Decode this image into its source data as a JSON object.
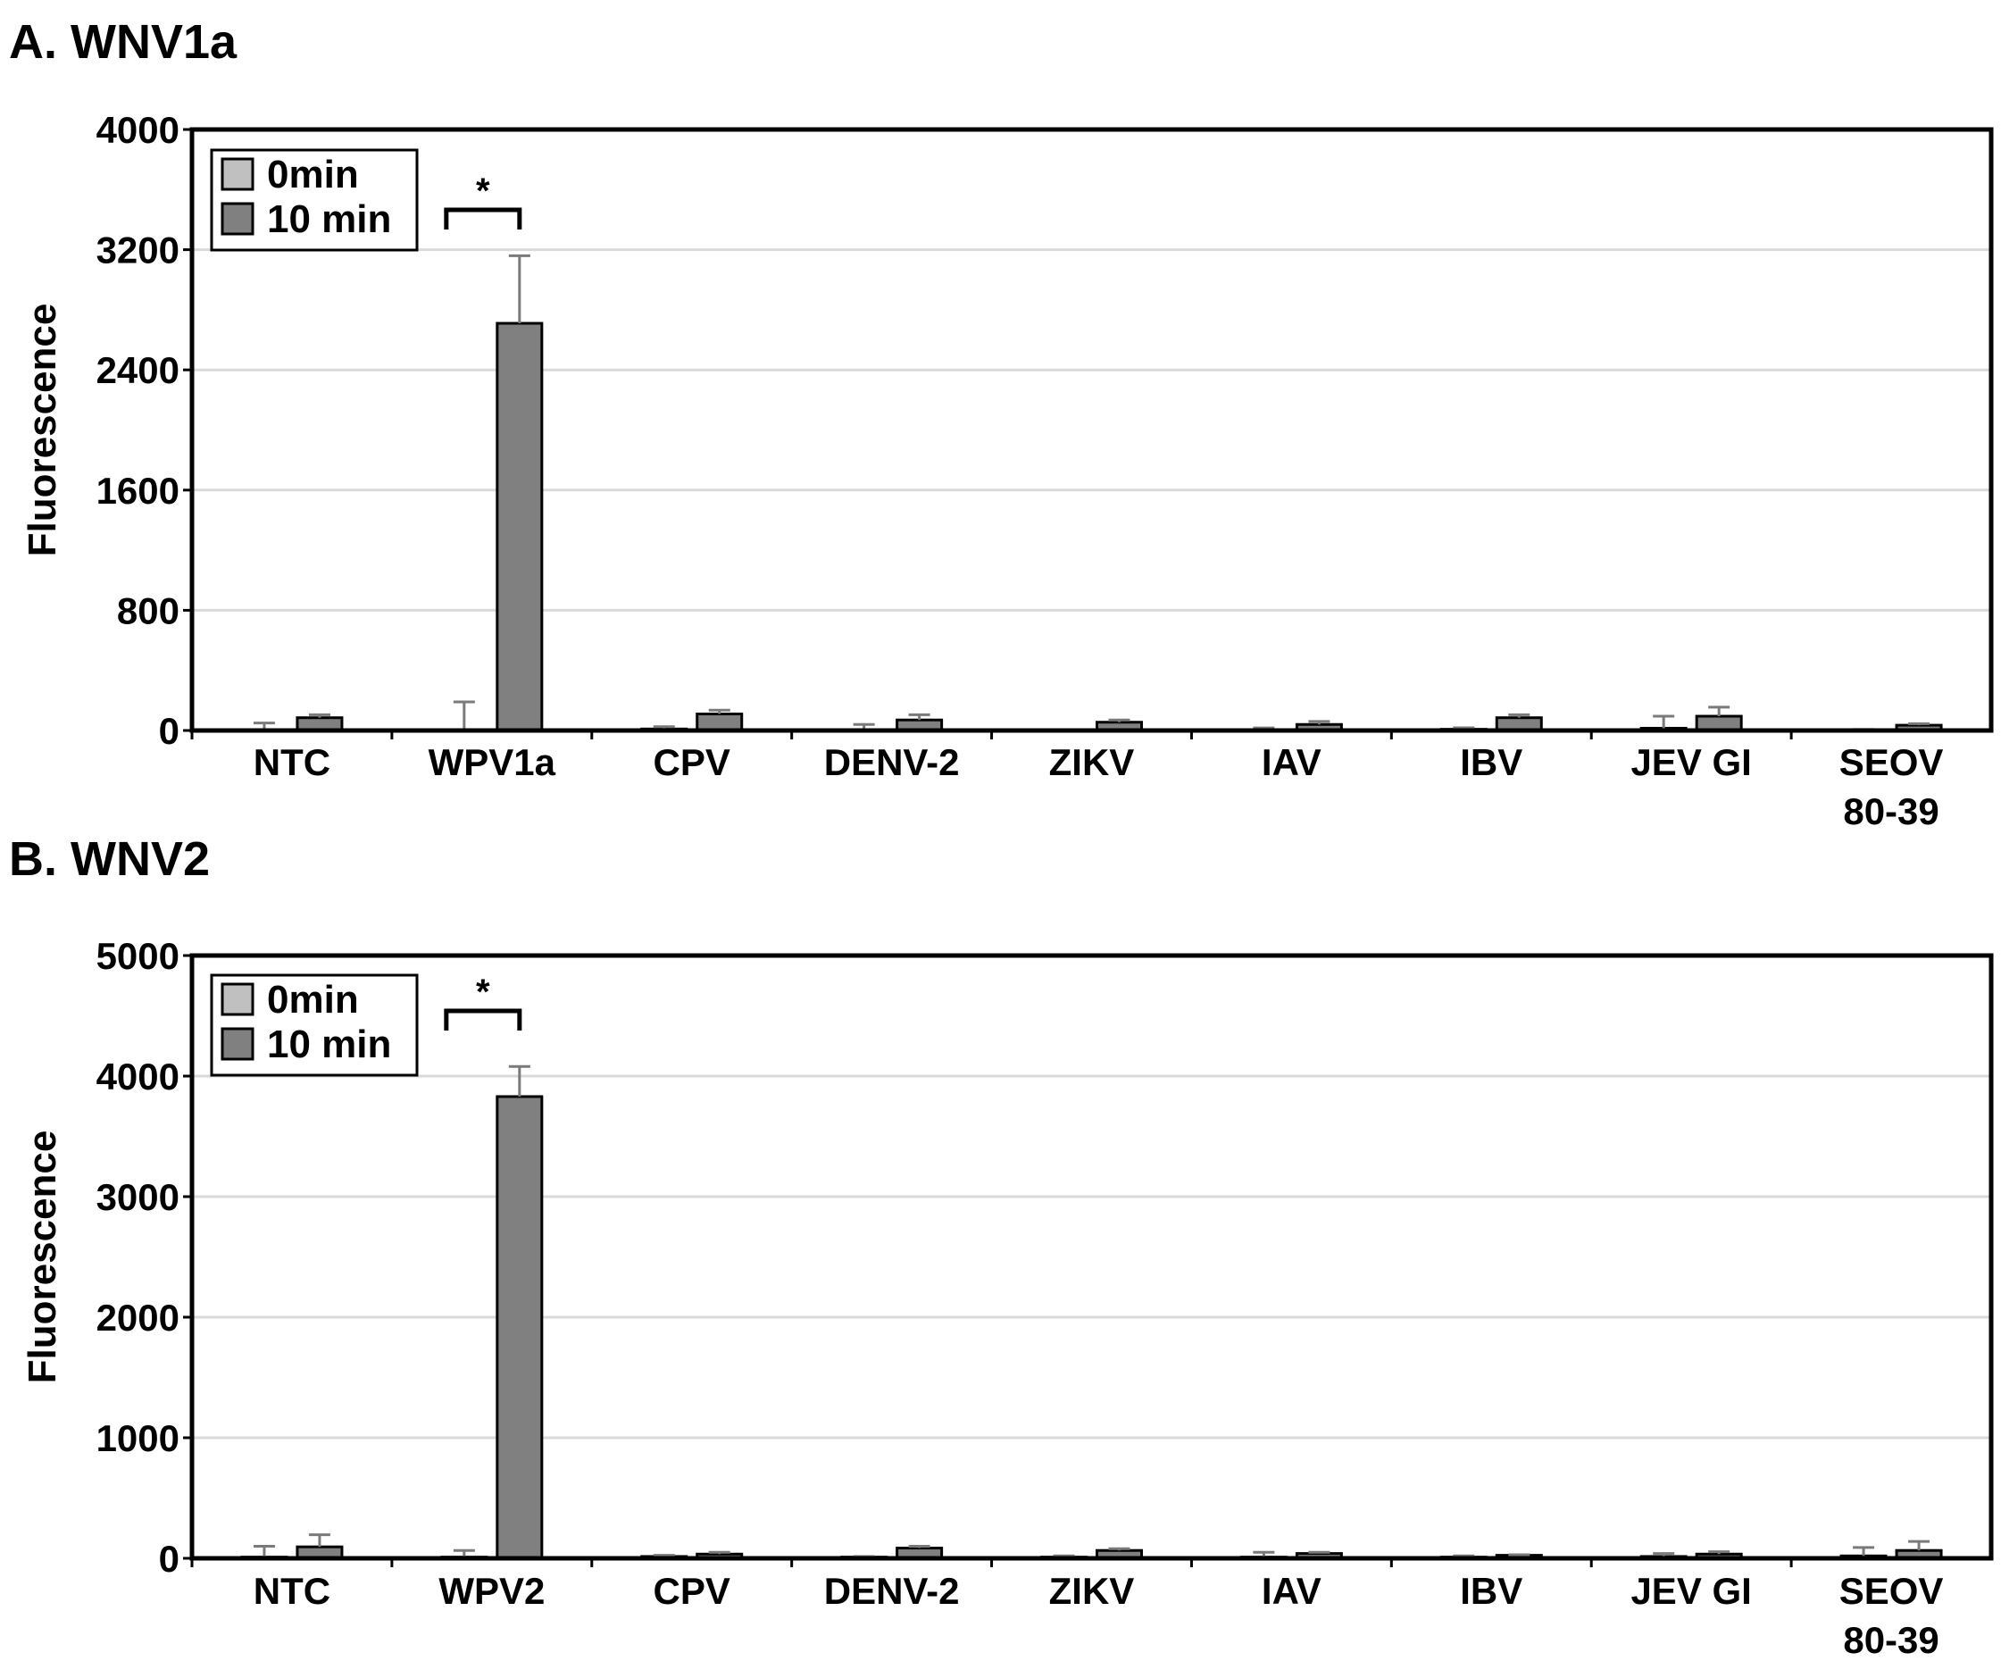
{
  "chart_data": [
    {
      "type": "bar",
      "title": "A. WNV1a",
      "ylabel": "Fluorescence",
      "xlabel": "",
      "ylim": [
        0,
        4000
      ],
      "yticks": [
        0,
        800,
        1600,
        2400,
        3200,
        4000
      ],
      "grid": true,
      "legend": "top-left",
      "categories": [
        "NTC",
        "WPV1a",
        "CPV",
        "DENV-2",
        "ZIKV",
        "IAV",
        "IBV",
        "JEV GI",
        "SEOV\n80-39"
      ],
      "series": [
        {
          "name": "0min",
          "color": "#c0c0c0",
          "values": [
            5,
            0,
            10,
            5,
            2,
            5,
            8,
            15,
            2
          ],
          "errors": [
            45,
            190,
            15,
            35,
            3,
            12,
            10,
            80,
            5
          ]
        },
        {
          "name": "10 min",
          "color": "#808080",
          "values": [
            85,
            2710,
            110,
            70,
            55,
            40,
            85,
            95,
            35
          ],
          "errors": [
            20,
            450,
            25,
            35,
            15,
            20,
            20,
            60,
            10
          ]
        }
      ],
      "significance": {
        "category": "WPV1a",
        "label": "*"
      }
    },
    {
      "type": "bar",
      "title": "B. WNV2",
      "ylabel": "Fluorescence",
      "xlabel": "",
      "ylim": [
        0,
        5000
      ],
      "yticks": [
        0,
        1000,
        2000,
        3000,
        4000,
        5000
      ],
      "grid": true,
      "legend": "top-left",
      "categories": [
        "NTC",
        "WPV2",
        "CPV",
        "DENV-2",
        "ZIKV",
        "IAV",
        "IBV",
        "JEV GI",
        "SEOV\n80-39"
      ],
      "series": [
        {
          "name": "0min",
          "color": "#c0c0c0",
          "values": [
            10,
            10,
            15,
            10,
            10,
            10,
            10,
            15,
            20
          ],
          "errors": [
            90,
            55,
            10,
            5,
            10,
            40,
            10,
            25,
            70
          ]
        },
        {
          "name": "10 min",
          "color": "#808080",
          "values": [
            95,
            3830,
            35,
            85,
            65,
            40,
            25,
            35,
            65
          ],
          "errors": [
            100,
            250,
            15,
            15,
            15,
            10,
            5,
            20,
            75
          ]
        }
      ],
      "significance": {
        "category": "WPV2",
        "label": "*"
      }
    }
  ]
}
